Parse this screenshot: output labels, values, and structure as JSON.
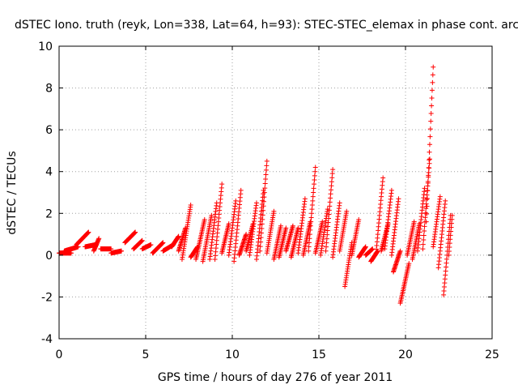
{
  "chart_data": {
    "type": "scatter",
    "title": "dSTEC Iono. truth (reyk, Lon=338, Lat=64, h=93): STEC-STEC_elemax in phase cont. arc",
    "xlabel": "GPS time / hours of day 276 of year 2011",
    "ylabel": "dSTEC  / TECUs",
    "xlim": [
      0,
      25
    ],
    "ylim": [
      -4,
      10
    ],
    "xticks": [
      0,
      5,
      10,
      15,
      20,
      25
    ],
    "yticks": [
      -4,
      -2,
      0,
      2,
      4,
      6,
      8,
      10
    ],
    "grid": true,
    "marker": "+",
    "series": [
      {
        "color": "#ff0000",
        "arcs": [
          [
            0.0,
            0.1,
            0.7,
            0.1
          ],
          [
            0.3,
            0.2,
            1.1,
            0.4
          ],
          [
            1.0,
            0.5,
            1.7,
            1.1
          ],
          [
            1.5,
            0.4,
            2.1,
            0.5
          ],
          [
            2.0,
            0.2,
            2.3,
            0.8
          ],
          [
            2.4,
            0.3,
            3.0,
            0.3
          ],
          [
            3.0,
            0.1,
            3.6,
            0.2
          ],
          [
            3.8,
            0.6,
            4.4,
            1.1
          ],
          [
            4.3,
            0.3,
            4.8,
            0.7
          ],
          [
            4.8,
            0.3,
            5.3,
            0.5
          ],
          [
            5.4,
            0.1,
            6.0,
            0.6
          ],
          [
            6.0,
            0.2,
            6.6,
            0.5
          ],
          [
            6.5,
            0.4,
            6.9,
            0.9
          ],
          [
            6.9,
            0.2,
            7.3,
            1.3
          ],
          [
            7.1,
            -0.2,
            7.6,
            2.4
          ],
          [
            7.6,
            -0.1,
            8.0,
            0.4
          ],
          [
            7.9,
            -0.2,
            8.4,
            1.7
          ],
          [
            8.3,
            -0.3,
            8.8,
            1.9
          ],
          [
            8.7,
            -0.2,
            9.1,
            2.5
          ],
          [
            9.0,
            -0.2,
            9.4,
            3.4
          ],
          [
            9.4,
            0.1,
            9.8,
            1.5
          ],
          [
            9.8,
            0.0,
            10.2,
            2.6
          ],
          [
            10.1,
            -0.3,
            10.5,
            3.1
          ],
          [
            10.4,
            0.0,
            10.8,
            1.0
          ],
          [
            10.8,
            0.2,
            11.2,
            1.5
          ],
          [
            11.0,
            0.0,
            11.4,
            2.5
          ],
          [
            11.4,
            -0.2,
            11.8,
            3.1
          ],
          [
            11.6,
            0.2,
            12.0,
            4.5
          ],
          [
            12.0,
            0.1,
            12.4,
            2.1
          ],
          [
            12.4,
            -0.2,
            12.8,
            1.4
          ],
          [
            12.7,
            -0.1,
            13.1,
            1.3
          ],
          [
            13.1,
            0.2,
            13.5,
            1.4
          ],
          [
            13.4,
            -0.1,
            13.8,
            1.3
          ],
          [
            13.8,
            0.1,
            14.2,
            2.7
          ],
          [
            14.1,
            0.0,
            14.5,
            1.6
          ],
          [
            14.4,
            0.2,
            14.8,
            4.2
          ],
          [
            14.8,
            0.1,
            15.2,
            1.6
          ],
          [
            15.1,
            0.0,
            15.5,
            2.2
          ],
          [
            15.4,
            0.2,
            15.8,
            4.1
          ],
          [
            15.8,
            -0.1,
            16.2,
            2.5
          ],
          [
            16.2,
            0.2,
            16.6,
            2.1
          ],
          [
            16.5,
            -1.5,
            16.9,
            0.6
          ],
          [
            16.9,
            0.0,
            17.3,
            1.7
          ],
          [
            17.3,
            -0.1,
            17.7,
            0.4
          ],
          [
            17.7,
            0.0,
            18.1,
            0.3
          ],
          [
            18.0,
            -0.3,
            18.4,
            0.2
          ],
          [
            18.3,
            0.1,
            18.7,
            3.7
          ],
          [
            18.6,
            0.2,
            19.0,
            1.5
          ],
          [
            18.8,
            0.3,
            19.2,
            3.1
          ],
          [
            19.2,
            0.0,
            19.6,
            2.7
          ],
          [
            19.3,
            -0.8,
            19.7,
            0.2
          ],
          [
            19.7,
            -2.3,
            20.2,
            -0.4
          ],
          [
            20.1,
            0.0,
            20.5,
            1.6
          ],
          [
            20.4,
            -0.2,
            20.8,
            1.5
          ],
          [
            20.7,
            0.2,
            21.1,
            3.2
          ],
          [
            21.0,
            0.3,
            21.4,
            4.6
          ],
          [
            21.2,
            1.6,
            21.6,
            9.0
          ],
          [
            21.6,
            0.4,
            22.0,
            2.8
          ],
          [
            21.9,
            -0.6,
            22.3,
            2.6
          ],
          [
            22.2,
            -1.9,
            22.6,
            1.9
          ],
          [
            22.5,
            0.0,
            22.7,
            1.9
          ]
        ]
      }
    ]
  }
}
